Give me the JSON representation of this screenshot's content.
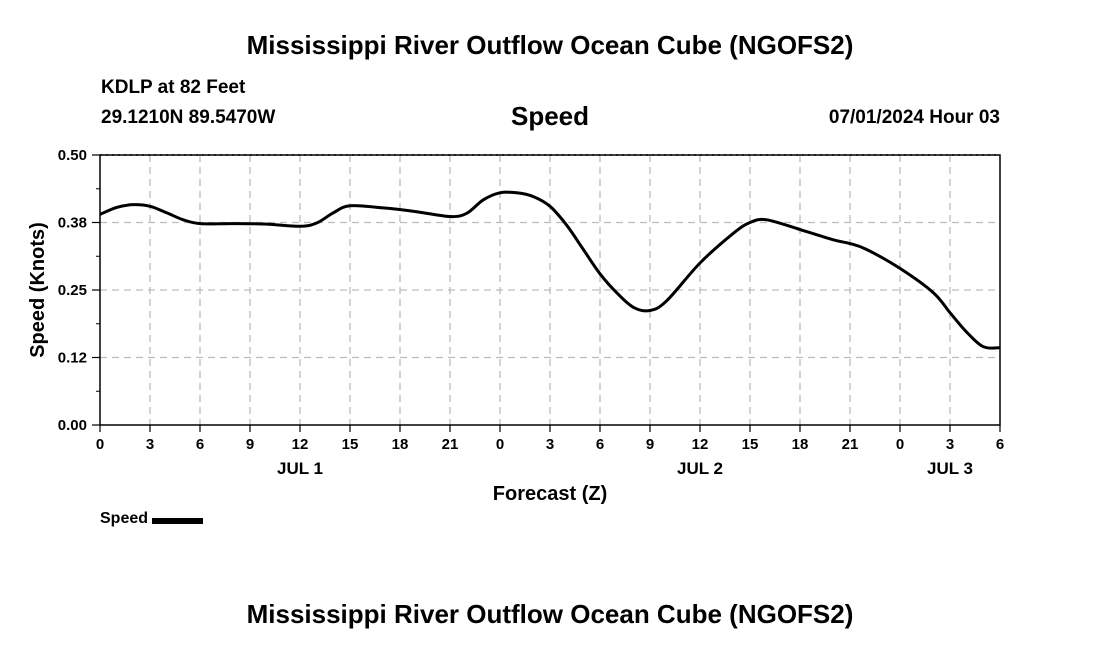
{
  "header": {
    "title": "Mississippi River Outflow Ocean Cube (NGOFS2)",
    "station": "KDLP at 82 Feet",
    "coords": "29.1210N  89.5470W",
    "subtitle": "Speed",
    "datetime": "07/01/2024 Hour 03"
  },
  "footer": {
    "title": "Mississippi River Outflow Ocean Cube (NGOFS2)"
  },
  "legend": {
    "label": "Speed"
  },
  "chart_data": {
    "type": "line",
    "xlabel": "Forecast (Z)",
    "ylabel": "Speed (Knots)",
    "xlim": [
      0,
      54
    ],
    "ylim": [
      0,
      0.5
    ],
    "y_ticks": [
      "0.00",
      "0.12",
      "0.25",
      "0.38",
      "0.50"
    ],
    "y_tick_values": [
      0,
      0.125,
      0.25,
      0.375,
      0.5
    ],
    "x_tick_labels": [
      "0",
      "3",
      "6",
      "9",
      "12",
      "15",
      "18",
      "21",
      "0",
      "3",
      "6",
      "9",
      "12",
      "15",
      "18",
      "21",
      "0",
      "3",
      "6"
    ],
    "day_labels": [
      {
        "label": "JUL 1",
        "hour": 12
      },
      {
        "label": "JUL 2",
        "hour": 36
      },
      {
        "label": "JUL 3",
        "hour": 51
      }
    ],
    "grid": true,
    "series": [
      {
        "name": "Speed",
        "color": "#000000",
        "x": [
          0,
          1,
          2,
          3,
          4,
          5,
          6,
          8,
          10,
          12,
          13,
          14,
          15,
          17,
          19,
          21,
          22,
          23,
          24,
          25,
          26,
          27,
          28,
          29,
          30,
          31,
          32,
          33,
          34,
          36,
          38,
          39,
          40,
          42,
          44,
          45,
          46,
          48,
          50,
          51,
          52,
          53,
          54
        ],
        "values": [
          0.39,
          0.403,
          0.408,
          0.405,
          0.393,
          0.38,
          0.373,
          0.373,
          0.372,
          0.368,
          0.374,
          0.393,
          0.406,
          0.402,
          0.395,
          0.386,
          0.392,
          0.417,
          0.43,
          0.43,
          0.423,
          0.405,
          0.37,
          0.325,
          0.28,
          0.245,
          0.218,
          0.212,
          0.23,
          0.3,
          0.355,
          0.375,
          0.38,
          0.362,
          0.343,
          0.336,
          0.325,
          0.29,
          0.245,
          0.208,
          0.172,
          0.145,
          0.143
        ]
      }
    ]
  }
}
